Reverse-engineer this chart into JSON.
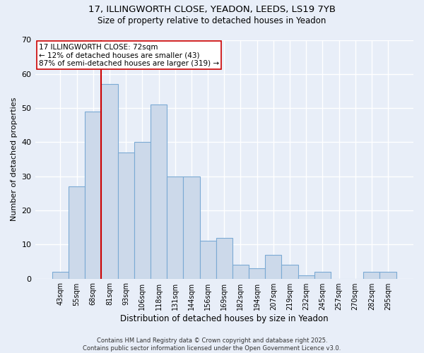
{
  "title1": "17, ILLINGWORTH CLOSE, YEADON, LEEDS, LS19 7YB",
  "title2": "Size of property relative to detached houses in Yeadon",
  "xlabel": "Distribution of detached houses by size in Yeadon",
  "ylabel": "Number of detached properties",
  "categories": [
    "43sqm",
    "55sqm",
    "68sqm",
    "81sqm",
    "93sqm",
    "106sqm",
    "118sqm",
    "131sqm",
    "144sqm",
    "156sqm",
    "169sqm",
    "182sqm",
    "194sqm",
    "207sqm",
    "219sqm",
    "232sqm",
    "245sqm",
    "257sqm",
    "270sqm",
    "282sqm",
    "295sqm"
  ],
  "values": [
    2,
    27,
    49,
    57,
    37,
    40,
    51,
    30,
    30,
    11,
    12,
    4,
    3,
    7,
    4,
    1,
    2,
    0,
    0,
    2,
    2
  ],
  "bar_color": "#ccd9ea",
  "bar_edge_color": "#7baad4",
  "vline_x": 2.5,
  "vline_color": "#cc0000",
  "annotation_text": "17 ILLINGWORTH CLOSE: 72sqm\n← 12% of detached houses are smaller (43)\n87% of semi-detached houses are larger (319) →",
  "annotation_box_color": "#ffffff",
  "annotation_box_edge": "#cc0000",
  "ylim": [
    0,
    70
  ],
  "yticks": [
    0,
    10,
    20,
    30,
    40,
    50,
    60,
    70
  ],
  "footer": "Contains HM Land Registry data © Crown copyright and database right 2025.\nContains public sector information licensed under the Open Government Licence v3.0.",
  "bg_color": "#e8eef8",
  "plot_bg_color": "#e8eef8",
  "grid_color": "#ffffff"
}
